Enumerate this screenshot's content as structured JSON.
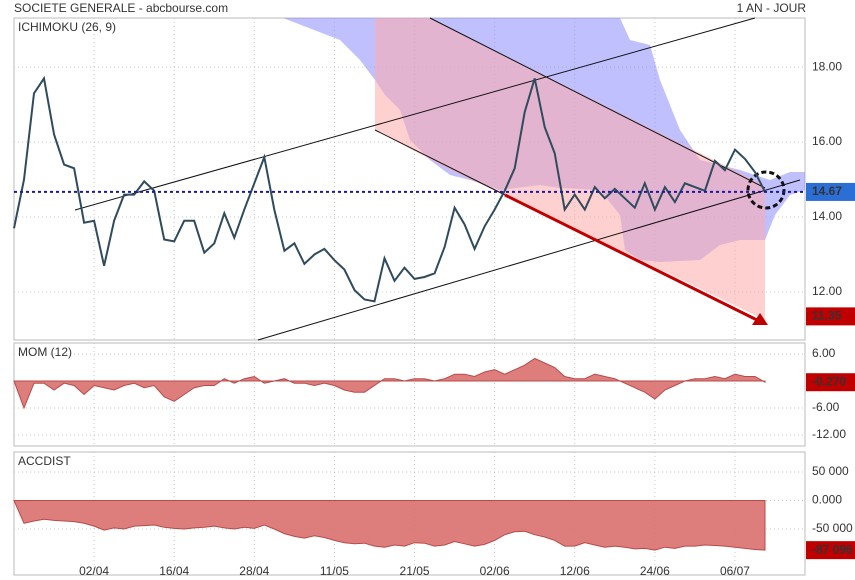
{
  "header": {
    "title": "SOCIETE GENERALE - abcbourse.com",
    "period": "1 AN - JOUR"
  },
  "chart_data": [
    {
      "type": "line",
      "title": "ICHIMOKU (26, 9)",
      "color": "#2f4b5c",
      "title_color": "#2a5db0",
      "values": [
        13.7,
        15.0,
        17.3,
        17.7,
        16.2,
        15.4,
        15.3,
        13.85,
        13.9,
        12.7,
        13.9,
        14.6,
        14.6,
        14.95,
        14.7,
        13.4,
        13.35,
        13.9,
        13.9,
        13.05,
        13.3,
        14.1,
        13.45,
        14.2,
        14.9,
        15.6,
        14.2,
        13.1,
        13.3,
        12.75,
        13.0,
        13.15,
        12.85,
        12.6,
        12.05,
        11.8,
        11.75,
        12.9,
        12.3,
        12.65,
        12.35,
        12.4,
        12.5,
        13.2,
        14.25,
        13.8,
        13.15,
        13.75,
        14.2,
        14.7,
        15.3,
        16.8,
        17.7,
        16.4,
        15.7,
        14.2,
        14.6,
        14.2,
        14.8,
        14.5,
        14.75,
        14.5,
        14.25,
        14.9,
        14.2,
        14.8,
        14.4,
        14.9,
        14.8,
        14.7,
        15.5,
        15.25,
        15.8,
        15.55,
        15.2,
        14.67
      ],
      "ylim": [
        10.72,
        19.31
      ],
      "yticks": [
        {
          "value": 12,
          "label": "12.00"
        },
        {
          "value": 14,
          "label": "14.00"
        },
        {
          "value": 16,
          "label": "16.00"
        },
        {
          "value": 18,
          "label": "18.00"
        }
      ],
      "last_value": {
        "value": 14.67,
        "label": "14.67"
      },
      "target": {
        "value": 11.35,
        "label": "11.35"
      },
      "grid": true
    },
    {
      "type": "area",
      "title": "MOM (12)",
      "color": "#d9706f",
      "title_color": "#c02020",
      "values": [
        0,
        -6,
        -0.5,
        -0.5,
        -2,
        -0.5,
        -1,
        -3,
        -1,
        -1.5,
        -2,
        -1,
        -0.5,
        -1.5,
        -1,
        -3.5,
        -4.5,
        -3,
        -1.5,
        -1,
        -1,
        0.5,
        -0.5,
        0.5,
        1,
        -0.5,
        0,
        0.5,
        -0.5,
        -0.5,
        -1,
        -0.5,
        -1,
        -2,
        -2.5,
        -2.5,
        -1,
        0.5,
        0.5,
        0,
        0.5,
        0.5,
        0,
        0.5,
        1.5,
        1.5,
        1,
        2,
        2.5,
        1.5,
        2.5,
        3.5,
        5,
        4,
        3,
        1,
        0.5,
        0.5,
        1.5,
        1,
        0.5,
        -0.5,
        -1.5,
        -2.5,
        -4,
        -2,
        -1,
        0,
        0.5,
        0.5,
        1,
        0.5,
        1.5,
        1,
        1,
        -0.27
      ],
      "ylim": [
        -14.44,
        8.44
      ],
      "yticks": [
        {
          "value": 6,
          "label": "6.00"
        },
        {
          "value": -6,
          "label": "-6.00"
        },
        {
          "value": -12,
          "label": "-12.00"
        }
      ],
      "last_value": {
        "value": -0.27,
        "label": "-0.270"
      },
      "grid": true
    },
    {
      "type": "area",
      "title": "ACCDIST",
      "color": "#d9706f",
      "title_color": "#c02020",
      "values": [
        0,
        -40000,
        -36000,
        -33000,
        -35000,
        -36000,
        -37000,
        -40000,
        -45000,
        -52000,
        -48000,
        -50000,
        -45000,
        -44000,
        -43000,
        -47000,
        -49000,
        -50000,
        -48000,
        -47000,
        -45000,
        -48000,
        -50000,
        -47000,
        -49000,
        -43000,
        -50000,
        -58000,
        -63000,
        -66000,
        -62000,
        -65000,
        -70000,
        -74000,
        -76000,
        -75000,
        -80000,
        -82000,
        -78000,
        -80000,
        -74000,
        -75000,
        -80000,
        -78000,
        -72000,
        -76000,
        -80000,
        -77000,
        -70000,
        -60000,
        -55000,
        -54000,
        -60000,
        -64000,
        -70000,
        -80000,
        -80000,
        -74000,
        -78000,
        -82000,
        -80000,
        -82000,
        -85000,
        -84000,
        -87000,
        -82000,
        -84000,
        -80000,
        -80000,
        -78000,
        -79000,
        -80000,
        -82000,
        -84000,
        -86000,
        -87096
      ],
      "ylim": [
        -130702,
        85088
      ],
      "yticks": [
        {
          "value": 50000,
          "label": "50 000"
        },
        {
          "value": 0,
          "label": "0.000"
        },
        {
          "value": -50000,
          "label": "-50 000"
        }
      ],
      "last_value": {
        "value": -87096,
        "label": "-87 096"
      },
      "categories": [
        null,
        null,
        null,
        null,
        null,
        null,
        null,
        null,
        "02/04",
        null,
        null,
        null,
        null,
        null,
        null,
        null,
        "16/04",
        null,
        null,
        null,
        null,
        null,
        null,
        null,
        "28/04",
        null,
        null,
        null,
        null,
        null,
        null,
        null,
        "11/05",
        null,
        null,
        null,
        null,
        null,
        null,
        null,
        "21/05",
        null,
        null,
        null,
        null,
        null,
        null,
        null,
        "02/06",
        null,
        null,
        null,
        null,
        null,
        null,
        null,
        "12/06",
        null,
        null,
        null,
        null,
        null,
        null,
        null,
        "24/06",
        null,
        null,
        null,
        null,
        null,
        null,
        null,
        "06/07",
        null,
        null,
        null
      ],
      "grid": true
    }
  ]
}
